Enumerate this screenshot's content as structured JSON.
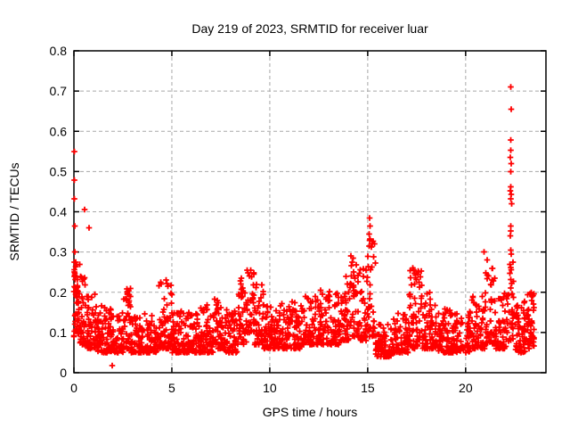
{
  "figure": {
    "background": "#ffffff",
    "text_color": "#000000"
  },
  "chart_data": {
    "type": "scatter",
    "title": "Day 219 of 2023, SRMTID for receiver luar",
    "xlabel": "GPS time / hours",
    "ylabel": "SRMTID / TECUs",
    "xlim": [
      0,
      24.1
    ],
    "ylim": [
      0,
      0.8
    ],
    "xticks": [
      0,
      5,
      10,
      15,
      20
    ],
    "xtick_labels": [
      "0",
      "5",
      "10",
      "15",
      "20"
    ],
    "yticks": [
      0,
      0.1,
      0.2,
      0.3,
      0.4,
      0.5,
      0.6,
      0.7,
      0.8
    ],
    "ytick_labels": [
      "0",
      "0.1",
      "0.2",
      "0.3",
      "0.4",
      "0.5",
      "0.6",
      "0.7",
      "0.8"
    ],
    "grid": true,
    "grid_style": "dashed",
    "grid_color": "#a8a8a8",
    "legend": "none",
    "marker": "plus",
    "marker_color": "#ff0000",
    "marker_size": 7,
    "axis_color": "#000000",
    "seed": 20230219,
    "density_bins": [
      [
        0.0,
        0.3,
        0.09,
        0.28,
        55,
        1.3
      ],
      [
        0.3,
        0.7,
        0.07,
        0.24,
        45,
        1.8
      ],
      [
        0.7,
        1.2,
        0.06,
        0.2,
        55,
        1.8
      ],
      [
        1.2,
        1.9,
        0.05,
        0.17,
        70,
        2.0
      ],
      [
        1.9,
        2.5,
        0.05,
        0.15,
        60,
        2.0
      ],
      [
        2.5,
        2.9,
        0.06,
        0.21,
        40,
        1.8
      ],
      [
        2.9,
        3.6,
        0.05,
        0.14,
        70,
        2.0
      ],
      [
        3.6,
        4.3,
        0.05,
        0.15,
        70,
        2.0
      ],
      [
        4.3,
        5.0,
        0.06,
        0.23,
        70,
        2.0
      ],
      [
        5.0,
        5.6,
        0.05,
        0.16,
        60,
        2.0
      ],
      [
        5.6,
        6.3,
        0.05,
        0.15,
        65,
        2.0
      ],
      [
        6.3,
        7.1,
        0.05,
        0.17,
        75,
        2.0
      ],
      [
        7.1,
        7.7,
        0.06,
        0.2,
        60,
        1.9
      ],
      [
        7.7,
        8.4,
        0.05,
        0.16,
        65,
        2.0
      ],
      [
        8.4,
        8.8,
        0.07,
        0.24,
        40,
        1.6
      ],
      [
        8.8,
        9.2,
        0.1,
        0.26,
        35,
        1.4
      ],
      [
        9.2,
        9.7,
        0.07,
        0.22,
        45,
        1.8
      ],
      [
        9.7,
        10.6,
        0.06,
        0.17,
        85,
        2.0
      ],
      [
        10.6,
        11.6,
        0.06,
        0.18,
        90,
        2.0
      ],
      [
        11.6,
        12.6,
        0.07,
        0.19,
        90,
        2.0
      ],
      [
        12.6,
        13.6,
        0.07,
        0.21,
        90,
        2.0
      ],
      [
        13.6,
        14.1,
        0.08,
        0.24,
        50,
        1.8
      ],
      [
        14.1,
        14.6,
        0.09,
        0.27,
        45,
        1.6
      ],
      [
        14.6,
        15.0,
        0.08,
        0.26,
        35,
        1.7
      ],
      [
        15.0,
        15.4,
        0.09,
        0.33,
        38,
        1.5
      ],
      [
        15.4,
        16.3,
        0.04,
        0.12,
        80,
        2.0
      ],
      [
        16.3,
        17.1,
        0.05,
        0.15,
        70,
        2.0
      ],
      [
        17.1,
        17.8,
        0.06,
        0.26,
        65,
        1.7
      ],
      [
        17.8,
        18.5,
        0.06,
        0.2,
        65,
        1.9
      ],
      [
        18.5,
        19.3,
        0.05,
        0.16,
        70,
        2.0
      ],
      [
        19.3,
        20.2,
        0.05,
        0.15,
        75,
        2.0
      ],
      [
        20.2,
        21.0,
        0.06,
        0.19,
        70,
        2.0
      ],
      [
        21.0,
        21.5,
        0.07,
        0.28,
        45,
        1.7
      ],
      [
        21.5,
        22.2,
        0.06,
        0.2,
        60,
        1.9
      ],
      [
        22.2,
        22.45,
        0.08,
        0.28,
        25,
        1.5
      ],
      [
        22.45,
        23.1,
        0.05,
        0.18,
        60,
        1.9
      ],
      [
        23.1,
        23.5,
        0.06,
        0.2,
        50,
        1.5
      ]
    ],
    "outliers": [
      [
        0.02,
        0.55
      ],
      [
        0.02,
        0.479
      ],
      [
        0.03,
        0.432
      ],
      [
        0.04,
        0.365
      ],
      [
        0.05,
        0.3
      ],
      [
        0.55,
        0.405
      ],
      [
        0.77,
        0.36
      ],
      [
        1.95,
        0.018
      ],
      [
        4.7,
        0.23
      ],
      [
        4.75,
        0.222
      ],
      [
        8.85,
        0.255
      ],
      [
        8.9,
        0.248
      ],
      [
        8.95,
        0.24
      ],
      [
        14.15,
        0.29
      ],
      [
        14.25,
        0.285
      ],
      [
        14.2,
        0.275
      ],
      [
        15.1,
        0.385
      ],
      [
        15.12,
        0.365
      ],
      [
        15.08,
        0.345
      ],
      [
        15.13,
        0.332
      ],
      [
        17.3,
        0.26
      ],
      [
        17.6,
        0.25
      ],
      [
        20.95,
        0.3
      ],
      [
        21.1,
        0.28
      ],
      [
        22.3,
        0.71
      ],
      [
        22.33,
        0.655
      ],
      [
        22.3,
        0.578
      ],
      [
        22.31,
        0.553
      ],
      [
        22.29,
        0.535
      ],
      [
        22.33,
        0.52
      ],
      [
        22.3,
        0.5
      ],
      [
        22.31,
        0.462
      ],
      [
        22.29,
        0.452
      ],
      [
        22.32,
        0.443
      ],
      [
        22.3,
        0.432
      ],
      [
        22.34,
        0.42
      ],
      [
        22.3,
        0.365
      ],
      [
        22.31,
        0.352
      ],
      [
        22.29,
        0.34
      ],
      [
        22.3,
        0.305
      ],
      [
        22.33,
        0.295
      ],
      [
        22.3,
        0.262
      ],
      [
        22.31,
        0.232
      ],
      [
        22.36,
        0.222
      ],
      [
        23.35,
        0.2
      ],
      [
        23.4,
        0.19
      ]
    ]
  }
}
